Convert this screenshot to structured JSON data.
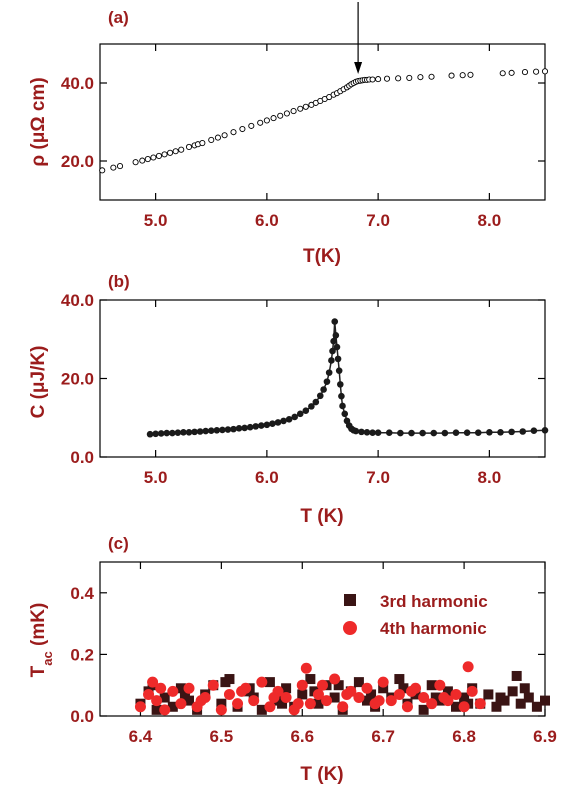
{
  "colors": {
    "axis_text": "#9b1c1c",
    "series_3rd": "#3a1414",
    "series_4th": "#ee2a2a"
  },
  "chart_data": [
    {
      "panel_label": "(a)",
      "type": "scatter",
      "marker": "open-circle",
      "xlabel": "T(K)",
      "ylabel": "ρ (μΩ cm)",
      "xlim": [
        4.5,
        8.5
      ],
      "ylim": [
        10,
        50
      ],
      "xticks": [
        5.0,
        6.0,
        7.0,
        8.0
      ],
      "xtick_labels": [
        "5.0",
        "6.0",
        "7.0",
        "8.0"
      ],
      "yticks": [
        20,
        40
      ],
      "ytick_labels": [
        "20.0",
        "40.0"
      ],
      "annotation": "arrow pointing down at T ≈ 6.82 K",
      "arrow_x": 6.82,
      "series": [
        {
          "x": [
            4.52,
            4.62,
            4.68,
            4.82,
            4.88,
            4.93,
            4.98,
            5.03,
            5.08,
            5.13,
            5.18,
            5.23,
            5.3,
            5.35,
            5.38,
            5.42,
            5.5,
            5.56,
            5.62,
            5.7,
            5.78,
            5.86,
            5.94,
            6.0,
            6.06,
            6.12,
            6.18,
            6.24,
            6.3,
            6.35,
            6.4,
            6.44,
            6.48,
            6.52,
            6.56,
            6.6,
            6.63,
            6.66,
            6.69,
            6.72,
            6.74,
            6.76,
            6.78,
            6.8,
            6.82,
            6.84,
            6.86,
            6.88,
            6.9,
            6.92,
            6.95,
            7.0,
            7.08,
            7.18,
            7.28,
            7.38,
            7.48,
            7.66,
            7.76,
            7.83,
            8.12,
            8.2,
            8.32,
            8.42,
            8.5
          ],
          "y": [
            17.6,
            18.3,
            18.7,
            19.7,
            20.1,
            20.5,
            20.9,
            21.3,
            21.7,
            22.1,
            22.5,
            22.9,
            23.6,
            24.0,
            24.3,
            24.6,
            25.4,
            26.0,
            26.6,
            27.4,
            28.2,
            29.0,
            29.8,
            30.4,
            31.0,
            31.6,
            32.2,
            32.8,
            33.4,
            33.9,
            34.4,
            34.9,
            35.4,
            35.9,
            36.4,
            37.0,
            37.4,
            37.9,
            38.4,
            38.9,
            39.3,
            39.7,
            40.0,
            40.3,
            40.5,
            40.6,
            40.7,
            40.8,
            40.8,
            40.9,
            40.9,
            41.0,
            41.1,
            41.2,
            41.3,
            41.5,
            41.6,
            41.9,
            42.0,
            42.1,
            42.5,
            42.6,
            42.8,
            42.9,
            43.0
          ]
        }
      ]
    },
    {
      "panel_label": "(b)",
      "type": "scatter",
      "marker": "filled-circle",
      "xlabel": "T (K)",
      "ylabel": "C (μJ/K)",
      "xlim": [
        4.5,
        8.5
      ],
      "ylim": [
        0,
        40
      ],
      "xticks": [
        5.0,
        6.0,
        7.0,
        8.0
      ],
      "xtick_labels": [
        "5.0",
        "6.0",
        "7.0",
        "8.0"
      ],
      "yticks": [
        0,
        20,
        40
      ],
      "ytick_labels": [
        "0.0",
        "20.0",
        "40.0"
      ],
      "series": [
        {
          "x": [
            4.95,
            5.0,
            5.05,
            5.1,
            5.15,
            5.2,
            5.25,
            5.3,
            5.35,
            5.4,
            5.45,
            5.5,
            5.55,
            5.6,
            5.65,
            5.7,
            5.75,
            5.8,
            5.85,
            5.9,
            5.95,
            6.0,
            6.05,
            6.1,
            6.15,
            6.2,
            6.25,
            6.3,
            6.35,
            6.4,
            6.44,
            6.48,
            6.51,
            6.54,
            6.56,
            6.58,
            6.59,
            6.6,
            6.61,
            6.62,
            6.63,
            6.64,
            6.65,
            6.66,
            6.67,
            6.68,
            6.7,
            6.72,
            6.74,
            6.76,
            6.78,
            6.8,
            6.85,
            6.9,
            6.95,
            7.0,
            7.1,
            7.2,
            7.3,
            7.4,
            7.5,
            7.6,
            7.7,
            7.8,
            7.9,
            8.0,
            8.1,
            8.2,
            8.3,
            8.4,
            8.5
          ],
          "y": [
            5.8,
            5.9,
            6.0,
            6.1,
            6.1,
            6.2,
            6.3,
            6.3,
            6.4,
            6.5,
            6.6,
            6.7,
            6.8,
            6.9,
            7.0,
            7.1,
            7.3,
            7.4,
            7.6,
            7.8,
            8.0,
            8.2,
            8.5,
            8.8,
            9.2,
            9.6,
            10.2,
            11.0,
            11.8,
            12.9,
            14.0,
            15.6,
            17.2,
            19.2,
            21.5,
            24.6,
            27.0,
            29.5,
            34.5,
            31.0,
            28.0,
            25.0,
            22.0,
            18.5,
            15.5,
            13.0,
            11.0,
            9.2,
            8.0,
            7.2,
            6.8,
            6.6,
            6.4,
            6.3,
            6.2,
            6.2,
            6.2,
            6.1,
            6.1,
            6.1,
            6.1,
            6.1,
            6.2,
            6.2,
            6.2,
            6.3,
            6.3,
            6.4,
            6.5,
            6.7,
            6.8
          ]
        }
      ]
    },
    {
      "panel_label": "(c)",
      "type": "scatter",
      "xlabel": "T (K)",
      "ylabel": "T",
      "ylabel_sub": "ac",
      "ylabel_unit": " (mK)",
      "xlim": [
        6.35,
        6.9
      ],
      "ylim": [
        0,
        0.5
      ],
      "xticks": [
        6.4,
        6.5,
        6.6,
        6.7,
        6.8,
        6.9
      ],
      "xtick_labels": [
        "6.4",
        "6.5",
        "6.6",
        "6.7",
        "6.8",
        "6.9"
      ],
      "yticks": [
        0,
        0.2,
        0.4
      ],
      "ytick_labels": [
        "0.0",
        "0.2",
        "0.4"
      ],
      "legend": "top-right",
      "series": [
        {
          "name": "3rd harmonic",
          "marker": "filled-square",
          "color": "#3a1414",
          "x": [
            6.4,
            6.41,
            6.42,
            6.43,
            6.44,
            6.45,
            6.46,
            6.47,
            6.48,
            6.49,
            6.5,
            6.51,
            6.52,
            6.53,
            6.54,
            6.55,
            6.56,
            6.57,
            6.58,
            6.59,
            6.6,
            6.61,
            6.62,
            6.63,
            6.64,
            6.65,
            6.66,
            6.67,
            6.68,
            6.69,
            6.7,
            6.71,
            6.72,
            6.73,
            6.74,
            6.75,
            6.76,
            6.77,
            6.78,
            6.79,
            6.8,
            6.81,
            6.82,
            6.83,
            6.84,
            6.85,
            6.86,
            6.865,
            6.87,
            6.88,
            6.89,
            6.9,
            6.415,
            6.455,
            6.505,
            6.535,
            6.575,
            6.615,
            6.645,
            6.685,
            6.725,
            6.765,
            6.805,
            6.845,
            6.875
          ],
          "y": [
            0.04,
            0.08,
            0.02,
            0.06,
            0.03,
            0.09,
            0.05,
            0.02,
            0.07,
            0.1,
            0.04,
            0.12,
            0.03,
            0.08,
            0.06,
            0.02,
            0.11,
            0.05,
            0.09,
            0.03,
            0.07,
            0.12,
            0.04,
            0.1,
            0.06,
            0.02,
            0.08,
            0.11,
            0.05,
            0.03,
            0.09,
            0.06,
            0.12,
            0.04,
            0.07,
            0.02,
            0.1,
            0.05,
            0.08,
            0.03,
            0.06,
            0.09,
            0.04,
            0.07,
            0.03,
            0.05,
            0.08,
            0.13,
            0.04,
            0.06,
            0.03,
            0.05,
            0.1,
            0.06,
            0.11,
            0.09,
            0.04,
            0.08,
            0.1,
            0.07,
            0.09,
            0.06,
            0.04,
            0.06,
            0.09
          ]
        },
        {
          "name": "4th harmonic",
          "marker": "filled-circle",
          "color": "#ee2a2a",
          "x": [
            6.4,
            6.41,
            6.415,
            6.42,
            6.43,
            6.44,
            6.45,
            6.46,
            6.47,
            6.48,
            6.49,
            6.5,
            6.51,
            6.52,
            6.53,
            6.54,
            6.55,
            6.56,
            6.57,
            6.58,
            6.59,
            6.6,
            6.605,
            6.61,
            6.62,
            6.63,
            6.64,
            6.65,
            6.66,
            6.67,
            6.68,
            6.69,
            6.7,
            6.71,
            6.72,
            6.73,
            6.74,
            6.75,
            6.76,
            6.77,
            6.78,
            6.79,
            6.8,
            6.805,
            6.81,
            6.82,
            6.425,
            6.475,
            6.525,
            6.565,
            6.595,
            6.625,
            6.655,
            6.695,
            6.735,
            6.775
          ],
          "y": [
            0.03,
            0.07,
            0.11,
            0.05,
            0.02,
            0.08,
            0.04,
            0.09,
            0.03,
            0.06,
            0.1,
            0.02,
            0.07,
            0.04,
            0.09,
            0.05,
            0.11,
            0.03,
            0.08,
            0.06,
            0.02,
            0.1,
            0.155,
            0.04,
            0.07,
            0.05,
            0.12,
            0.03,
            0.08,
            0.06,
            0.09,
            0.04,
            0.11,
            0.05,
            0.07,
            0.03,
            0.09,
            0.06,
            0.04,
            0.1,
            0.05,
            0.07,
            0.03,
            0.16,
            0.08,
            0.04,
            0.09,
            0.05,
            0.08,
            0.06,
            0.04,
            0.1,
            0.07,
            0.05,
            0.08,
            0.06
          ]
        }
      ]
    }
  ]
}
